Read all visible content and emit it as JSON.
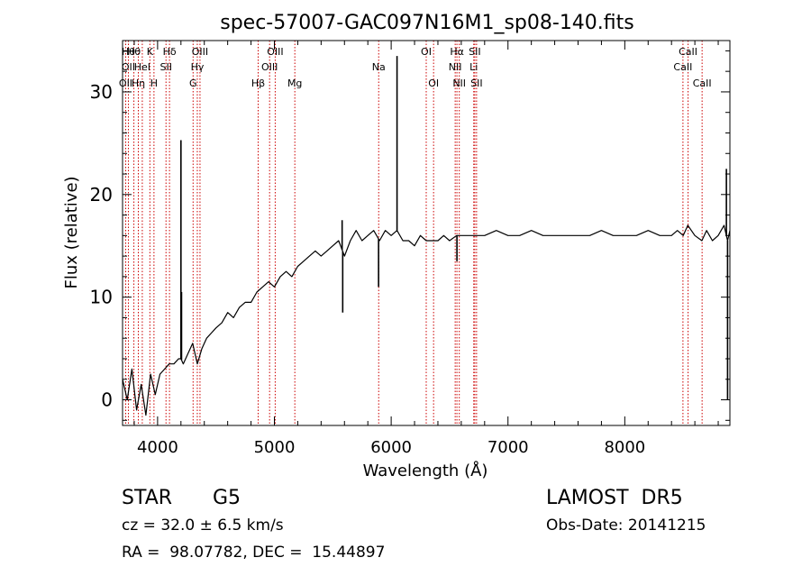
{
  "chart_data": {
    "type": "line",
    "title": "spec-57007-GAC097N16M1_sp08-140.fits",
    "xlabel": "Wavelength (Å)",
    "ylabel": "Flux (relative)",
    "xlim": [
      3700,
      8900
    ],
    "ylim": [
      -2.5,
      35
    ],
    "xticks": [
      4000,
      5000,
      6000,
      7000,
      8000
    ],
    "yticks": [
      0,
      10,
      20,
      30
    ],
    "grid": false,
    "series": [
      {
        "x": [
          3700,
          3740,
          3780,
          3820,
          3860,
          3900,
          3940,
          3980,
          4020,
          4060,
          4100,
          4140,
          4180,
          4200,
          4220,
          4260,
          4300,
          4340,
          4380,
          4420,
          4460,
          4500,
          4550,
          4600,
          4650,
          4700,
          4750,
          4800,
          4850,
          4900,
          4950,
          5000,
          5050,
          5100,
          5150,
          5200,
          5250,
          5300,
          5350,
          5400,
          5450,
          5500,
          5550,
          5600,
          5650,
          5700,
          5750,
          5800,
          5850,
          5900,
          5950,
          6000,
          6050,
          6100,
          6150,
          6200,
          6250,
          6300,
          6350,
          6400,
          6450,
          6500,
          6560,
          6600,
          6650,
          6700,
          6750,
          6800,
          6900,
          7000,
          7100,
          7200,
          7300,
          7400,
          7500,
          7600,
          7700,
          7800,
          7900,
          8000,
          8100,
          8200,
          8300,
          8400,
          8450,
          8500,
          8540,
          8600,
          8660,
          8700,
          8750,
          8800,
          8850,
          8880,
          8900
        ],
        "y": [
          2,
          0,
          3,
          -1,
          1.5,
          -1.5,
          2.5,
          0.5,
          2.5,
          3,
          3.5,
          3.5,
          4,
          4,
          3.5,
          4.5,
          5.5,
          3.5,
          5,
          6,
          6.5,
          7,
          7.5,
          8.5,
          8,
          9,
          9.5,
          9.5,
          10.5,
          11,
          11.5,
          11,
          12,
          12.5,
          12,
          13,
          13.5,
          14,
          14.5,
          14,
          14.5,
          15,
          15.5,
          14,
          15.5,
          16.5,
          15.5,
          16,
          16.5,
          15.5,
          16.5,
          16,
          16.5,
          15.5,
          15.5,
          15,
          16,
          15.5,
          15.5,
          15.5,
          16,
          15.5,
          16,
          16,
          16,
          16,
          16,
          16,
          16.5,
          16,
          16,
          16.5,
          16,
          16,
          16,
          16,
          16,
          16.5,
          16,
          16,
          16,
          16.5,
          16,
          16,
          16.5,
          16,
          17,
          16,
          15.5,
          16.5,
          15.5,
          16,
          17,
          15.5,
          16.5
        ]
      }
    ],
    "features": [
      {
        "x": 4200,
        "y": 25.3
      },
      {
        "x": 4205,
        "y": 10.5
      },
      {
        "x": 5580,
        "y": 17.5
      },
      {
        "x": 5585,
        "y": 8.5
      },
      {
        "x": 5892,
        "y": 11
      },
      {
        "x": 6050,
        "y": 33.5
      },
      {
        "x": 6563,
        "y": 13.5
      },
      {
        "x": 8870,
        "y": 22.5
      },
      {
        "x": 8880,
        "y": 0
      }
    ],
    "lines": [
      {
        "x": 3727,
        "labels": [
          "OII"
        ],
        "rows": [
          3
        ]
      },
      {
        "x": 3750,
        "labels": [
          "Hθ",
          "OII"
        ],
        "rows": [
          1,
          2
        ]
      },
      {
        "x": 3797,
        "labels": [
          "Hθ"
        ],
        "rows": [
          1
        ]
      },
      {
        "x": 3835,
        "labels": [
          "Hη"
        ],
        "rows": [
          3
        ]
      },
      {
        "x": 3869,
        "labels": [
          "HeI"
        ],
        "rows": [
          2
        ]
      },
      {
        "x": 3934,
        "labels": [
          "K"
        ],
        "rows": [
          1
        ]
      },
      {
        "x": 3969,
        "labels": [
          "H"
        ],
        "rows": [
          3
        ]
      },
      {
        "x": 4072,
        "labels": [
          "SII"
        ],
        "rows": [
          2
        ]
      },
      {
        "x": 4102,
        "labels": [
          "Hδ"
        ],
        "rows": [
          1
        ]
      },
      {
        "x": 4304,
        "labels": [
          "G"
        ],
        "rows": [
          3
        ]
      },
      {
        "x": 4340,
        "labels": [
          "Hγ"
        ],
        "rows": [
          2
        ]
      },
      {
        "x": 4363,
        "labels": [
          "OIII"
        ],
        "rows": [
          1
        ]
      },
      {
        "x": 4861,
        "labels": [
          "Hβ"
        ],
        "rows": [
          3
        ]
      },
      {
        "x": 4959,
        "labels": [
          "OIII"
        ],
        "rows": [
          2
        ]
      },
      {
        "x": 5007,
        "labels": [
          "OIII"
        ],
        "rows": [
          1
        ]
      },
      {
        "x": 5175,
        "labels": [
          "Mg"
        ],
        "rows": [
          3
        ]
      },
      {
        "x": 5893,
        "labels": [
          "Na"
        ],
        "rows": [
          2
        ]
      },
      {
        "x": 6300,
        "labels": [
          "OI"
        ],
        "rows": [
          1
        ]
      },
      {
        "x": 6363,
        "labels": [
          "OI"
        ],
        "rows": [
          3
        ]
      },
      {
        "x": 6548,
        "labels": [
          "NII"
        ],
        "rows": [
          2
        ]
      },
      {
        "x": 6563,
        "labels": [
          "Hα"
        ],
        "rows": [
          1
        ]
      },
      {
        "x": 6583,
        "labels": [
          "NII"
        ],
        "rows": [
          3
        ]
      },
      {
        "x": 6707,
        "labels": [
          "Li"
        ],
        "rows": [
          2
        ]
      },
      {
        "x": 6716,
        "labels": [
          "SII"
        ],
        "rows": [
          1
        ]
      },
      {
        "x": 6731,
        "labels": [
          "SII"
        ],
        "rows": [
          3
        ]
      },
      {
        "x": 8498,
        "labels": [
          "CaII"
        ],
        "rows": [
          2
        ]
      },
      {
        "x": 8542,
        "labels": [
          "CaII"
        ],
        "rows": [
          1
        ]
      },
      {
        "x": 8662,
        "labels": [
          "CaII"
        ],
        "rows": [
          3
        ]
      }
    ],
    "colors": {
      "spectrum": "#000000",
      "line_marker": "#cc0000"
    }
  },
  "info": {
    "class": "STAR",
    "subclass": "G5",
    "survey": "LAMOST  DR5",
    "cz": "cz = 32.0 ± 6.5 km/s",
    "obs_date": "Obs-Date: 20141215",
    "coords": "RA =  98.07782, DEC =  15.44897"
  }
}
